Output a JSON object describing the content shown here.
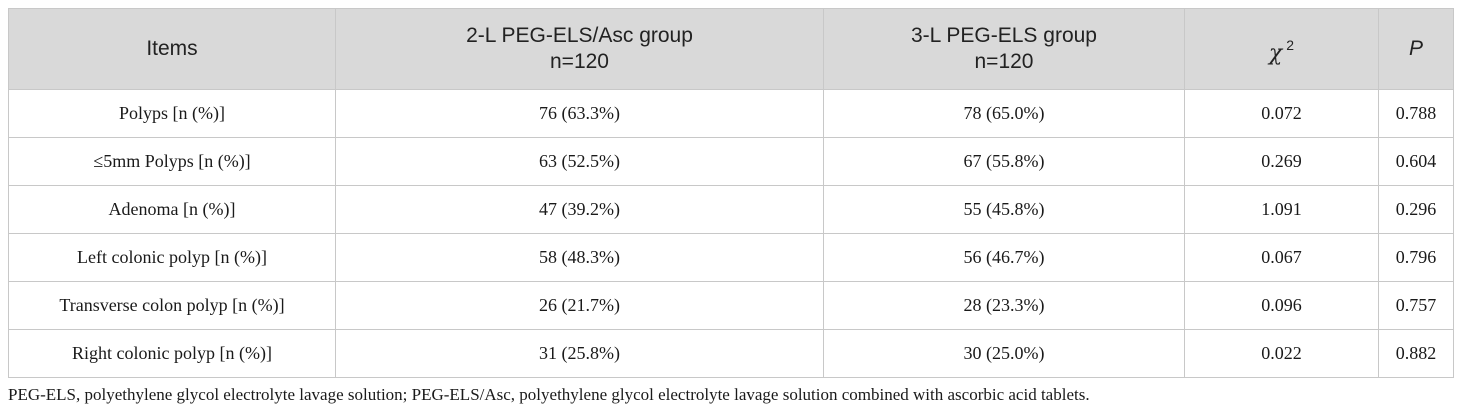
{
  "header": {
    "items": "Items",
    "col1_line1": "2-L PEG-ELS/Asc group",
    "col1_line2": "n=120",
    "col2_line1": "3-L PEG-ELS group",
    "col2_line2": "n=120",
    "chi_symbol": "χ",
    "chi_exp": "2",
    "p": "P"
  },
  "rows": [
    {
      "item": "Polyps [n (%)]",
      "g1": "76 (63.3%)",
      "g2": "78 (65.0%)",
      "chi": "0.072",
      "p": "0.788"
    },
    {
      "item": "≤5mm Polyps [n (%)]",
      "g1": "63 (52.5%)",
      "g2": "67 (55.8%)",
      "chi": "0.269",
      "p": "0.604"
    },
    {
      "item": "Adenoma [n (%)]",
      "g1": "47 (39.2%)",
      "g2": "55 (45.8%)",
      "chi": "1.091",
      "p": "0.296"
    },
    {
      "item": "Left colonic polyp [n (%)]",
      "g1": "58 (48.3%)",
      "g2": "56 (46.7%)",
      "chi": "0.067",
      "p": "0.796"
    },
    {
      "item": "Transverse colon polyp [n (%)]",
      "g1": "26 (21.7%)",
      "g2": "28 (23.3%)",
      "chi": "0.096",
      "p": "0.757"
    },
    {
      "item": "Right colonic polyp [n (%)]",
      "g1": "31 (25.8%)",
      "g2": "30 (25.0%)",
      "chi": "0.022",
      "p": "0.882"
    }
  ],
  "footnote": "PEG-ELS, polyethylene glycol electrolyte lavage solution; PEG-ELS/Asc, polyethylene glycol electrolyte lavage solution combined with ascorbic acid tablets."
}
